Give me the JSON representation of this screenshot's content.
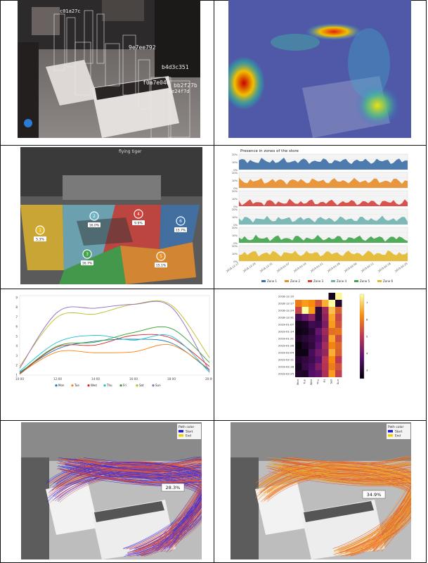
{
  "panel1": {
    "track_ids": [
      "9e7ee792",
      "b4d3c351",
      "f0a7e04e",
      "bb2f27b",
      "c01a27c",
      "de24f7d"
    ]
  },
  "panel3": {
    "brand_sign": "flying tiger",
    "zones": [
      {
        "id": "1",
        "pct": "5.3%",
        "color": "#e3b82b"
      },
      {
        "id": "2",
        "pct": "16.0%",
        "color": "#6fb2c4"
      },
      {
        "id": "3",
        "pct": "16.7%",
        "color": "#3fa34a"
      },
      {
        "id": "4",
        "pct": "9.9%",
        "color": "#d6403a"
      },
      {
        "id": "5",
        "pct": "15.1%",
        "color": "#e88d2b"
      },
      {
        "id": "6",
        "pct": "13.7%",
        "color": "#3c73b2"
      }
    ]
  },
  "panel4": {
    "title": "Presence in zones of the store",
    "yticks": [
      "20%",
      "10%",
      "0%"
    ],
    "xticks": [
      "2018-12-17",
      "2018-12-24",
      "2018-12-31",
      "2019-01-07",
      "2019-01-14",
      "2019-01-21",
      "2019-01-28",
      "2019-02-04",
      "2019-02-11",
      "2019-02-18",
      "2019-02-25"
    ],
    "legend": [
      {
        "name": "Zone 1",
        "color": "#3c6ea5"
      },
      {
        "name": "Zone 2",
        "color": "#e88d2b"
      },
      {
        "name": "Zone 3",
        "color": "#d6403a"
      },
      {
        "name": "Zone 4",
        "color": "#6fb2b0"
      },
      {
        "name": "Zone 5",
        "color": "#3fa34a"
      },
      {
        "name": "Zone 6",
        "color": "#e3b82b"
      }
    ]
  },
  "chart_data": [
    {
      "type": "line",
      "title": "",
      "x": [
        "10:00",
        "12:00",
        "14:00",
        "16:00",
        "18:00",
        "20:00"
      ],
      "yticks": [
        1,
        2,
        3,
        4,
        5,
        6,
        7,
        8,
        9
      ],
      "ylim": [
        1,
        9.2
      ],
      "legend_position": "bottom",
      "series": [
        {
          "name": "Mon",
          "color": "#1f77b4",
          "values": [
            1.3,
            3.7,
            4.5,
            4.7,
            4.3,
            1.5
          ]
        },
        {
          "name": "Tue",
          "color": "#ff7f0e",
          "values": [
            1.2,
            3.4,
            3.3,
            3.4,
            4.1,
            1.6
          ]
        },
        {
          "name": "Wed",
          "color": "#d62728",
          "values": [
            1.1,
            3.9,
            4.1,
            5.1,
            4.8,
            1.9
          ]
        },
        {
          "name": "Thu",
          "color": "#17becf",
          "values": [
            1.4,
            4.4,
            5.1,
            4.6,
            5.0,
            1.3
          ]
        },
        {
          "name": "Fri",
          "color": "#2ca02c",
          "values": [
            1.2,
            4.0,
            4.4,
            5.4,
            5.8,
            2.3
          ]
        },
        {
          "name": "Sat",
          "color": "#bcbd22",
          "values": [
            1.9,
            7.0,
            7.3,
            8.3,
            8.2,
            2.8
          ]
        },
        {
          "name": "Sun",
          "color": "#9467bd",
          "values": [
            1.7,
            7.5,
            7.9,
            8.3,
            8.0,
            1.4
          ]
        }
      ]
    },
    {
      "type": "heatmap",
      "rows": [
        "2018-12-10",
        "2018-12-17",
        "2018-12-24",
        "2018-12-31",
        "2019-01-07",
        "2019-01-14",
        "2019-01-21",
        "2019-01-28",
        "2019-02-04",
        "2019-02-11",
        "2019-02-18",
        "2019-02-25"
      ],
      "columns": [
        "Mon",
        "Tue",
        "Wed",
        "Thu",
        "Fri",
        "Sat",
        "Sun"
      ],
      "colorbar_ticks": [
        3,
        4,
        5,
        6,
        7
      ],
      "values": [
        [
          null,
          null,
          null,
          null,
          null,
          2.8,
          7.4
        ],
        [
          6.0,
          6.4,
          6.2,
          5.4,
          6.6,
          7.6,
          3.0
        ],
        [
          5.2,
          7.8,
          6.4,
          3.1,
          4.6,
          6.8,
          5.6
        ],
        [
          3.4,
          3.9,
          4.4,
          3.1,
          4.4,
          6.5,
          5.2
        ],
        [
          2.8,
          2.9,
          3.4,
          3.3,
          4.2,
          6.4,
          5.4
        ],
        [
          2.7,
          2.8,
          3.1,
          3.9,
          4.6,
          5.8,
          5.9
        ],
        [
          2.9,
          3.1,
          3.3,
          3.6,
          4.4,
          6.5,
          5.3
        ],
        [
          2.6,
          2.9,
          3.2,
          3.8,
          4.7,
          6.1,
          5.7
        ],
        [
          2.7,
          2.7,
          3.5,
          4.1,
          4.5,
          6.6,
          5.6
        ],
        [
          3.0,
          3.2,
          3.4,
          3.8,
          5.0,
          6.2,
          5.0
        ],
        [
          2.8,
          3.3,
          3.6,
          4.2,
          4.9,
          6.0,
          5.4
        ],
        [
          3.0,
          2.9,
          3.7,
          3.9,
          4.8,
          6.4,
          5.1
        ]
      ]
    }
  ],
  "panel7": {
    "legend_title": "Path color",
    "legend_start": "Start",
    "legend_end": "End",
    "badge": "28.3%"
  },
  "panel8": {
    "legend_title": "Path color",
    "legend_start": "Start",
    "legend_end": "End",
    "badge": "34.9%"
  }
}
